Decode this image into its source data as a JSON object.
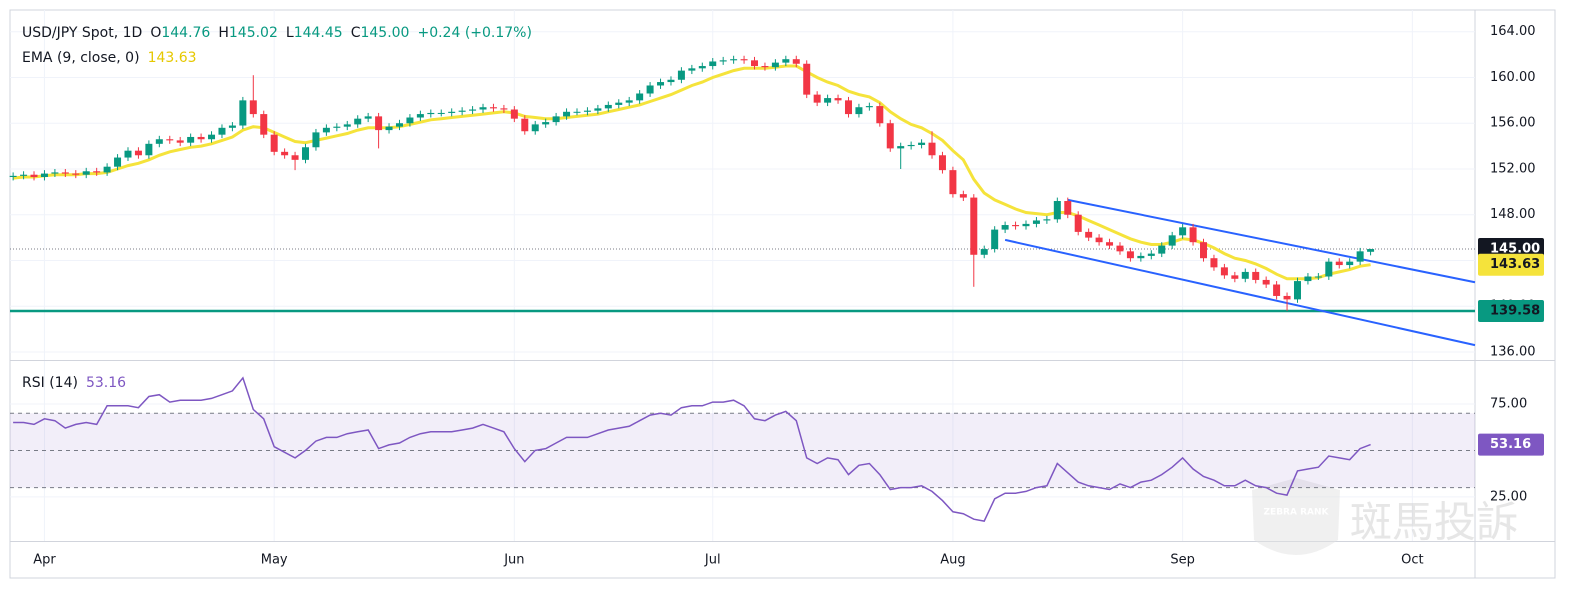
{
  "chart_data": [
    {
      "type": "candlestick",
      "legend": {
        "title": "USD/JPY Spot, 1D",
        "items": [
          {
            "key": "O",
            "value": "144.76"
          },
          {
            "key": "H",
            "value": "145.02"
          },
          {
            "key": "L",
            "value": "144.45"
          },
          {
            "key": "C",
            "value": "145.00"
          }
        ],
        "change": "+0.24 (+0.17%)"
      },
      "up_color": "#089981",
      "down_color": "#f23645",
      "x": [
        0,
        1,
        2,
        3,
        4,
        5,
        6,
        7,
        8,
        9,
        10,
        11,
        12,
        13,
        14,
        15,
        16,
        17,
        18,
        19,
        20,
        21,
        22,
        23,
        24,
        25,
        26,
        27,
        28,
        29,
        30,
        31,
        32,
        33,
        34,
        35,
        36,
        37,
        38,
        39,
        40,
        41,
        42,
        43,
        44,
        45,
        46,
        47,
        48,
        49,
        50,
        51,
        52,
        53,
        54,
        55,
        56,
        57,
        58,
        59,
        60,
        61,
        62,
        63,
        64,
        65,
        66,
        67,
        68,
        69,
        70,
        71,
        72,
        73,
        74,
        75,
        76,
        77,
        78,
        79,
        80,
        81,
        82,
        83,
        84,
        85,
        86,
        87,
        88,
        89,
        90,
        91,
        92,
        93,
        94,
        95,
        96,
        97,
        98,
        99,
        100,
        101,
        102,
        103,
        104,
        105,
        106,
        107,
        108,
        109,
        110,
        111,
        112,
        113,
        114,
        115,
        116,
        117,
        118,
        119,
        120,
        121,
        122,
        123,
        124,
        125,
        126,
        127,
        128,
        129,
        130
      ],
      "open": [
        151.3,
        151.4,
        151.5,
        151.3,
        151.6,
        151.7,
        151.6,
        151.5,
        151.8,
        151.7,
        152.2,
        153.0,
        153.6,
        153.2,
        154.2,
        154.6,
        154.5,
        154.3,
        154.8,
        154.6,
        155.0,
        155.6,
        155.8,
        158.0,
        156.8,
        155.0,
        153.5,
        153.2,
        152.8,
        153.9,
        155.2,
        155.6,
        155.7,
        155.9,
        156.4,
        156.6,
        155.4,
        155.7,
        156.0,
        156.5,
        156.8,
        156.9,
        156.9,
        157.0,
        157.1,
        157.2,
        157.4,
        157.3,
        157.2,
        156.4,
        155.3,
        155.9,
        156.1,
        156.6,
        157.0,
        157.0,
        157.1,
        157.3,
        157.6,
        157.8,
        158.0,
        158.6,
        159.3,
        159.6,
        159.8,
        160.6,
        160.8,
        161.0,
        161.4,
        161.5,
        161.6,
        161.5,
        161.0,
        160.9,
        161.3,
        161.6,
        161.2,
        158.5,
        157.8,
        158.2,
        158.0,
        156.8,
        157.4,
        157.5,
        156.0,
        153.8,
        154.0,
        154.1,
        154.3,
        153.2,
        151.9,
        149.8,
        149.5,
        144.5,
        145.0,
        146.7,
        147.1,
        147.0,
        147.2,
        147.5,
        147.6,
        149.2,
        148.0,
        146.5,
        146.0,
        145.6,
        145.3,
        144.8,
        144.2,
        144.4,
        144.6,
        145.3,
        146.2,
        146.9,
        145.6,
        144.2,
        143.4,
        142.7,
        142.4,
        143.0,
        142.3,
        141.9,
        140.9,
        140.6,
        142.2,
        142.6,
        142.6,
        143.9,
        143.6,
        143.9,
        144.76
      ],
      "high": [
        151.7,
        151.8,
        151.8,
        151.9,
        152.0,
        152.0,
        151.9,
        152.1,
        152.1,
        152.5,
        153.3,
        153.9,
        153.9,
        154.5,
        154.9,
        154.9,
        154.8,
        155.1,
        155.1,
        155.3,
        155.9,
        156.1,
        158.3,
        160.2,
        157.1,
        155.3,
        153.8,
        153.5,
        154.2,
        155.5,
        155.9,
        156.0,
        156.2,
        156.7,
        156.9,
        156.9,
        156.0,
        156.3,
        156.8,
        157.1,
        157.2,
        157.2,
        157.3,
        157.4,
        157.5,
        157.7,
        157.7,
        157.6,
        157.5,
        156.7,
        156.2,
        156.4,
        156.9,
        157.3,
        157.3,
        157.4,
        157.6,
        157.9,
        158.1,
        158.3,
        158.9,
        159.6,
        159.9,
        160.1,
        160.9,
        161.1,
        161.3,
        161.7,
        161.8,
        161.9,
        161.9,
        161.8,
        161.3,
        161.6,
        161.9,
        161.9,
        161.5,
        158.8,
        158.5,
        158.5,
        158.3,
        157.7,
        157.8,
        157.8,
        156.3,
        154.3,
        154.4,
        154.6,
        155.3,
        153.5,
        152.2,
        150.1,
        149.8,
        145.3,
        147.0,
        147.4,
        147.4,
        147.5,
        147.8,
        147.9,
        149.5,
        149.5,
        148.3,
        146.8,
        146.3,
        145.9,
        145.6,
        145.1,
        144.7,
        144.9,
        145.6,
        146.5,
        147.2,
        147.2,
        145.9,
        144.5,
        143.7,
        143.0,
        143.3,
        143.3,
        142.6,
        142.2,
        141.2,
        142.5,
        142.9,
        142.9,
        144.2,
        144.2,
        144.2,
        145.1,
        145.02
      ],
      "low": [
        151.0,
        151.1,
        151.0,
        151.0,
        151.3,
        151.3,
        151.2,
        151.2,
        151.4,
        151.4,
        151.9,
        152.7,
        152.9,
        152.9,
        153.9,
        154.2,
        154.0,
        154.0,
        154.3,
        154.3,
        154.7,
        155.3,
        155.5,
        156.5,
        154.7,
        153.2,
        152.9,
        151.9,
        152.5,
        153.6,
        154.9,
        155.3,
        155.4,
        155.6,
        156.1,
        153.8,
        155.1,
        155.4,
        155.7,
        156.2,
        156.5,
        156.6,
        156.6,
        156.7,
        156.8,
        156.9,
        157.0,
        156.9,
        156.1,
        155.0,
        155.0,
        155.6,
        155.8,
        156.3,
        156.7,
        156.7,
        156.8,
        157.0,
        157.3,
        157.5,
        157.7,
        158.3,
        159.0,
        159.3,
        159.5,
        160.3,
        160.5,
        160.7,
        161.1,
        161.2,
        161.2,
        160.7,
        160.6,
        160.6,
        161.0,
        160.9,
        158.2,
        157.5,
        157.5,
        157.7,
        156.5,
        156.5,
        157.1,
        155.7,
        153.5,
        152.0,
        153.7,
        153.8,
        152.9,
        151.6,
        149.5,
        149.2,
        141.7,
        144.2,
        144.7,
        146.4,
        146.7,
        146.7,
        146.9,
        147.2,
        147.3,
        147.7,
        146.2,
        145.7,
        145.3,
        145.0,
        144.5,
        143.9,
        143.9,
        144.1,
        144.3,
        145.0,
        145.9,
        145.3,
        143.9,
        143.1,
        142.4,
        142.1,
        142.1,
        142.0,
        141.6,
        140.6,
        139.6,
        140.3,
        141.9,
        142.3,
        142.3,
        143.3,
        143.3,
        143.6,
        144.45
      ],
      "close": [
        151.4,
        151.5,
        151.3,
        151.6,
        151.7,
        151.6,
        151.5,
        151.8,
        151.7,
        152.2,
        153.0,
        153.6,
        153.2,
        154.2,
        154.6,
        154.5,
        154.3,
        154.8,
        154.6,
        155.0,
        155.6,
        155.8,
        158.0,
        156.8,
        155.0,
        153.5,
        153.2,
        152.8,
        153.9,
        155.2,
        155.6,
        155.7,
        155.9,
        156.4,
        156.6,
        155.4,
        155.7,
        156.0,
        156.5,
        156.8,
        156.9,
        156.9,
        157.0,
        157.1,
        157.2,
        157.4,
        157.3,
        157.2,
        156.4,
        155.3,
        155.9,
        156.1,
        156.6,
        157.0,
        157.0,
        157.1,
        157.3,
        157.6,
        157.8,
        158.0,
        158.6,
        159.3,
        159.6,
        159.8,
        160.6,
        160.8,
        161.0,
        161.4,
        161.5,
        161.6,
        161.5,
        161.0,
        160.9,
        161.3,
        161.6,
        161.2,
        158.5,
        157.8,
        158.2,
        158.0,
        156.8,
        157.4,
        157.5,
        156.0,
        153.8,
        154.0,
        154.1,
        154.3,
        153.2,
        151.9,
        149.8,
        149.5,
        144.5,
        145.0,
        146.7,
        147.1,
        147.0,
        147.2,
        147.5,
        147.6,
        149.2,
        148.0,
        146.5,
        146.0,
        145.6,
        145.3,
        144.8,
        144.2,
        144.4,
        144.6,
        145.3,
        146.2,
        146.9,
        145.6,
        144.2,
        143.4,
        142.7,
        142.4,
        143.0,
        142.3,
        141.9,
        140.9,
        140.6,
        142.2,
        142.6,
        142.6,
        143.9,
        143.6,
        143.9,
        144.8,
        145.0
      ],
      "ema": {
        "name": "EMA (9, close, 0)",
        "color": "#f5e33b",
        "text_color": "#e6c800",
        "values": [
          151.2,
          151.3,
          151.3,
          151.4,
          151.5,
          151.5,
          151.5,
          151.6,
          151.6,
          151.7,
          152.0,
          152.3,
          152.5,
          152.8,
          153.2,
          153.5,
          153.7,
          153.9,
          154.0,
          154.2,
          154.5,
          154.8,
          155.4,
          155.7,
          155.6,
          155.2,
          154.8,
          154.4,
          154.3,
          154.5,
          154.7,
          154.9,
          155.1,
          155.4,
          155.6,
          155.6,
          155.6,
          155.7,
          155.9,
          156.1,
          156.3,
          156.4,
          156.5,
          156.6,
          156.7,
          156.8,
          156.9,
          157.0,
          156.9,
          156.6,
          156.5,
          156.4,
          156.4,
          156.5,
          156.6,
          156.7,
          156.8,
          157.0,
          157.2,
          157.4,
          157.6,
          157.9,
          158.2,
          158.5,
          158.9,
          159.3,
          159.6,
          160.0,
          160.3,
          160.6,
          160.8,
          160.8,
          160.8,
          160.9,
          161.0,
          161.0,
          160.5,
          160.0,
          159.6,
          159.3,
          158.8,
          158.5,
          158.3,
          157.8,
          157.0,
          156.4,
          155.9,
          155.6,
          155.1,
          154.5,
          153.6,
          152.8,
          151.1,
          149.9,
          149.3,
          148.9,
          148.5,
          148.2,
          148.1,
          148.0,
          148.2,
          148.2,
          147.9,
          147.5,
          147.1,
          146.7,
          146.3,
          145.9,
          145.6,
          145.4,
          145.4,
          145.6,
          145.9,
          145.8,
          145.5,
          145.1,
          144.6,
          144.2,
          144.0,
          143.7,
          143.3,
          142.8,
          142.4,
          142.4,
          142.4,
          142.5,
          142.8,
          143.0,
          143.2,
          143.5,
          143.63
        ]
      },
      "trend_lines": [
        {
          "x": [
            101,
            140
          ],
          "y": [
            149.3,
            142.1
          ]
        },
        {
          "x": [
            95,
            140
          ],
          "y": [
            145.8,
            136.6
          ]
        }
      ],
      "trend_color": "#2962ff",
      "last_price": {
        "value": 145,
        "label": "145.00"
      },
      "hline": {
        "value": 139.58,
        "label": "139.58",
        "color": "#089981"
      },
      "xlim": [
        -0.3,
        140
      ],
      "xticks": [
        3,
        25,
        48,
        67,
        90,
        112,
        134
      ],
      "ylim": [
        135.3,
        165.9
      ],
      "yticks": [
        {
          "value": 136,
          "label": "136.00"
        },
        {
          "value": 140,
          "label": "140.00"
        },
        {
          "value": 144,
          "label": "144.00"
        },
        {
          "value": 148,
          "label": "148.00"
        },
        {
          "value": 152,
          "label": "152.00"
        },
        {
          "value": 156,
          "label": "156.00"
        },
        {
          "value": 160,
          "label": "160.00"
        },
        {
          "value": 164,
          "label": "164.00"
        }
      ],
      "grid": true
    },
    {
      "type": "line",
      "name": "RSI (14)",
      "color": "#7e57c2",
      "values": [
        65,
        65,
        64,
        67,
        66,
        62,
        64,
        65,
        64,
        74,
        74,
        74,
        73,
        79,
        80,
        76,
        77,
        77,
        77,
        78,
        80,
        82,
        89,
        72,
        67,
        52,
        49,
        46,
        50,
        55,
        57,
        57,
        59,
        60,
        61,
        51,
        53,
        54,
        57,
        59,
        60,
        60,
        60,
        61,
        62,
        64,
        62,
        60,
        51,
        44,
        50,
        51,
        54,
        57,
        57,
        57,
        59,
        61,
        62,
        63,
        66,
        69,
        70,
        69,
        73,
        74,
        74,
        76,
        76,
        77,
        74,
        67,
        66,
        69,
        71,
        66,
        46,
        43,
        46,
        45,
        37,
        42,
        43,
        37,
        29,
        30,
        30,
        31,
        28,
        23,
        17,
        16,
        13,
        12,
        24,
        27,
        27,
        28,
        30,
        31,
        43,
        38,
        33,
        31,
        30,
        29,
        32,
        30,
        33,
        34,
        37,
        41,
        46,
        40,
        36,
        34,
        31,
        31,
        34,
        31,
        30,
        27,
        26,
        39,
        40,
        41,
        47,
        46,
        45,
        51,
        53.16
      ],
      "bands": [
        30,
        70
      ],
      "midline": 50,
      "xlim": [
        -0.3,
        140
      ],
      "xticks": [
        {
          "value": 3,
          "label": "Apr"
        },
        {
          "value": 25,
          "label": "May"
        },
        {
          "value": 48,
          "label": "Jun"
        },
        {
          "value": 67,
          "label": "Jul"
        },
        {
          "value": 90,
          "label": "Aug"
        },
        {
          "value": 112,
          "label": "Sep"
        },
        {
          "value": 134,
          "label": "Oct"
        }
      ],
      "ylim": [
        1.3,
        98.1
      ],
      "yticks": [
        {
          "value": 25,
          "label": "25.00"
        },
        {
          "value": 75,
          "label": "75.00"
        }
      ],
      "grid": true
    }
  ],
  "watermark": {
    "badge": "ZEBRA RANK",
    "text": "斑馬投訴"
  }
}
